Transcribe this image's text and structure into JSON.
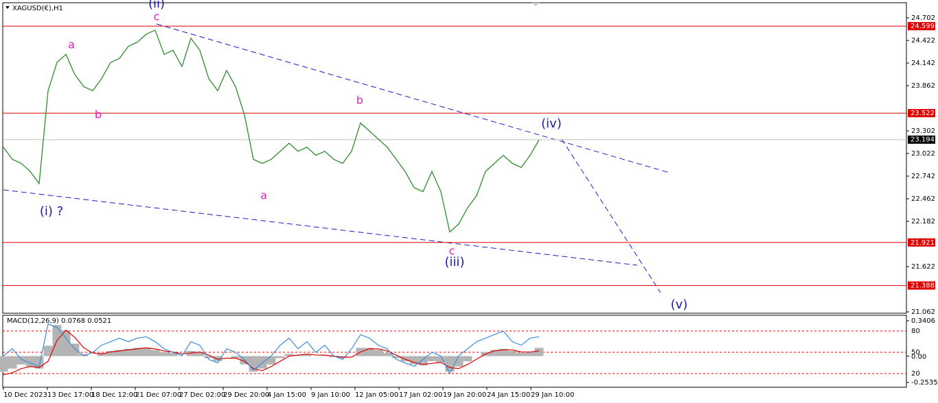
{
  "chart_data": [
    {
      "type": "line",
      "title": "XAGUSD(€),H1",
      "series": [
        {
          "name": "XAGUSD",
          "color": "#2e8b2e",
          "values": [
            23.1,
            22.95,
            22.9,
            22.8,
            22.65,
            23.8,
            24.15,
            24.25,
            24.0,
            23.85,
            23.8,
            23.95,
            24.15,
            24.2,
            24.35,
            24.4,
            24.5,
            24.55,
            24.25,
            24.3,
            24.1,
            24.45,
            24.3,
            23.95,
            23.8,
            24.05,
            23.85,
            23.5,
            22.95,
            22.9,
            22.95,
            23.05,
            23.15,
            23.05,
            23.1,
            23.0,
            23.05,
            22.95,
            22.9,
            23.05,
            23.4,
            23.3,
            23.2,
            23.1,
            22.95,
            22.8,
            22.6,
            22.55,
            22.8,
            22.55,
            22.05,
            22.15,
            22.35,
            22.5,
            22.8,
            22.9,
            23.0,
            22.9,
            22.85,
            23.0,
            23.19
          ]
        }
      ],
      "ylim": [
        21.045,
        24.889
      ],
      "yticks": [
        24.702,
        24.422,
        24.142,
        23.862,
        23.302,
        23.022,
        22.742,
        22.462,
        22.182,
        21.622,
        21.062
      ],
      "xlim": [
        0,
        60
      ],
      "xticks": [
        {
          "value": 0,
          "label": "10 Dec 2023"
        },
        {
          "value": 4.92,
          "label": "13 Dec 17:00"
        },
        {
          "value": 9.85,
          "label": "18 Dec 12:00"
        },
        {
          "value": 14.77,
          "label": "21 Dec 07:00"
        },
        {
          "value": 19.69,
          "label": "27 Dec 02:00"
        },
        {
          "value": 24.62,
          "label": "29 Dec 20:00"
        },
        {
          "value": 29.54,
          "label": "4 Jan 15:00"
        },
        {
          "value": 34.46,
          "label": "9 Jan 10:00"
        },
        {
          "value": 39.38,
          "label": "12 Jan 05:00"
        },
        {
          "value": 44.31,
          "label": "17 Jan 02:00"
        },
        {
          "value": 49.23,
          "label": "19 Jan 20:00"
        },
        {
          "value": 54.15,
          "label": "24 Jan 15:00"
        },
        {
          "value": 59.08,
          "label": "29 Jan 10:00"
        }
      ],
      "levels": [
        24.599,
        23.522,
        21.921,
        21.388
      ],
      "level_color": "#e00000",
      "current_price": 23.194,
      "annotations": [
        {
          "text": "(ii)",
          "color": "#1a1aa8"
        },
        {
          "text": "c",
          "color": "#e020c0"
        },
        {
          "text": "a",
          "color": "#e020c0"
        },
        {
          "text": "b",
          "color": "#e020c0"
        },
        {
          "text": "(i) ?",
          "color": "#1a1aa8"
        },
        {
          "text": "a",
          "color": "#e020c0"
        },
        {
          "text": "b",
          "color": "#e020c0"
        },
        {
          "text": "c",
          "color": "#e020c0"
        },
        {
          "text": "(iii)",
          "color": "#1a1aa8"
        },
        {
          "text": "(iv)",
          "color": "#1a1aa8"
        },
        {
          "text": "(v)",
          "color": "#1a1aa8"
        }
      ]
    },
    {
      "type": "macd",
      "title": "MACD(12,26,9) 0.0768 0.0521",
      "series": [
        {
          "name": "MACD",
          "color": "#b4b4b4",
          "values": [
            -0.15,
            -0.12,
            -0.08,
            -0.1,
            -0.12,
            0.1,
            0.3,
            0.25,
            0.12,
            0.02,
            0.0,
            0.03,
            0.05,
            0.06,
            0.07,
            0.08,
            0.08,
            0.06,
            0.04,
            0.03,
            0.0,
            0.05,
            0.04,
            -0.02,
            -0.05,
            0.0,
            -0.02,
            -0.08,
            -0.15,
            -0.12,
            -0.08,
            -0.02,
            0.02,
            0.01,
            0.02,
            0.0,
            0.01,
            -0.01,
            -0.02,
            0.0,
            0.08,
            0.08,
            0.06,
            0.03,
            -0.02,
            -0.05,
            -0.08,
            -0.09,
            -0.05,
            -0.06,
            -0.15,
            -0.1,
            -0.05,
            0.0,
            0.04,
            0.06,
            0.07,
            0.05,
            0.03,
            0.04,
            0.08
          ]
        },
        {
          "name": "Signal",
          "color": "#e00000",
          "values": [
            -0.18,
            -0.16,
            -0.12,
            -0.1,
            -0.11,
            -0.05,
            0.15,
            0.25,
            0.18,
            0.08,
            0.03,
            0.02,
            0.04,
            0.05,
            0.06,
            0.07,
            0.08,
            0.07,
            0.05,
            0.04,
            0.02,
            0.03,
            0.04,
            0.01,
            -0.03,
            -0.02,
            -0.02,
            -0.05,
            -0.12,
            -0.14,
            -0.1,
            -0.05,
            0.0,
            0.01,
            0.02,
            0.01,
            0.01,
            0.0,
            -0.01,
            -0.01,
            0.04,
            0.07,
            0.07,
            0.05,
            0.01,
            -0.03,
            -0.06,
            -0.08,
            -0.07,
            -0.06,
            -0.11,
            -0.12,
            -0.08,
            -0.03,
            0.02,
            0.05,
            0.06,
            0.06,
            0.04,
            0.04,
            0.05
          ]
        },
        {
          "name": "Oscillator",
          "color": "#3c8ce0",
          "axis": "y2",
          "values": [
            45,
            55,
            40,
            35,
            30,
            90,
            85,
            70,
            55,
            45,
            50,
            60,
            65,
            70,
            65,
            70,
            72,
            65,
            55,
            50,
            45,
            65,
            60,
            40,
            35,
            55,
            50,
            40,
            25,
            35,
            45,
            60,
            70,
            55,
            65,
            50,
            60,
            45,
            40,
            55,
            75,
            70,
            60,
            55,
            40,
            35,
            30,
            40,
            50,
            45,
            20,
            45,
            55,
            65,
            70,
            75,
            80,
            65,
            60,
            70,
            72
          ]
        }
      ],
      "ylim": [
        -0.2997,
        0.3934
      ],
      "yticks": [
        0.3406,
        {
          "value": 0,
          "label": "0.00"
        },
        -0.2535
      ],
      "y2lim": [
        0.7,
        102.3
      ],
      "y2ticks": [
        80,
        50,
        20
      ]
    }
  ]
}
